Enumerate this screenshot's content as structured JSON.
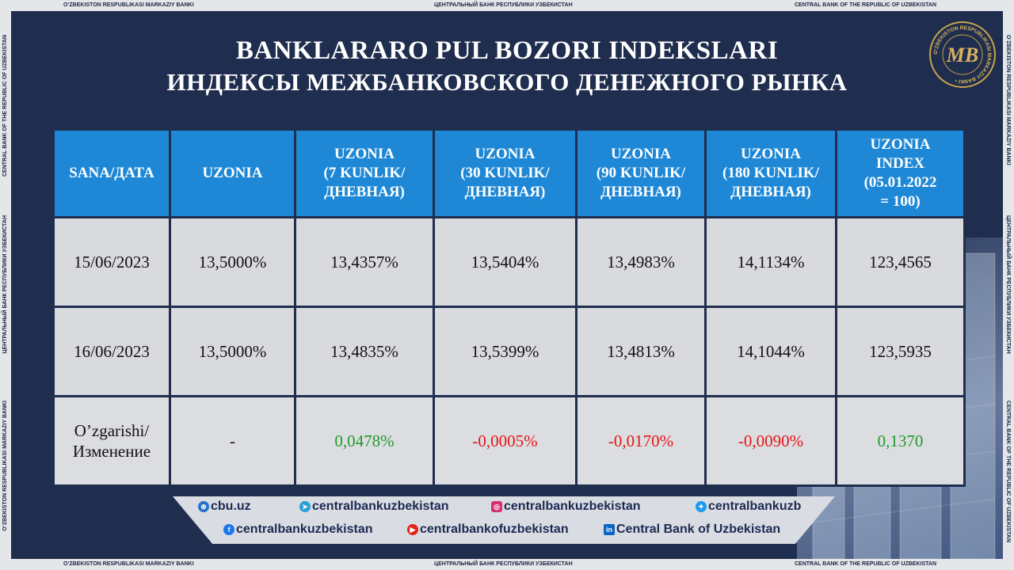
{
  "frame": {
    "top": [
      "O‘ZBEKISTON RESPUBLIKASI MARKAZIY BANKI",
      "ЦЕНТРАЛЬНЫЙ БАНК РЕСПУБЛИКИ УЗБЕКИСТАН",
      "CENTRAL BANK OF THE REPUBLIC OF UZBEKISTAN"
    ],
    "bottom": [
      "O‘ZBEKISTON RESPUBLIKASI MARKAZIY BANKI",
      "ЦЕНТРАЛЬНЫЙ БАНК РЕСПУБЛИКИ УЗБЕКИСТАН",
      "CENTRAL BANK OF THE REPUBLIC OF UZBEKISTAN"
    ],
    "left": [
      "CENTRAL BANK OF THE REPUBLIC OF UZBEKISTAN",
      "ЦЕНТРАЛЬНЫЙ БАНК РЕСПУБЛИКИ УЗБЕКИСТАН",
      "O‘ZBEKISTON RESPUBLIKASI MARKAZIY BANKI"
    ],
    "right": [
      "O‘ZBEKISTON RESPUBLIKASI MARKAZIY BANKI",
      "ЦЕНТРАЛЬНЫЙ БАНК РЕСПУБЛИКИ УЗБЕКИСТАН",
      "CENTRAL BANK OF THE REPUBLIC OF UZBEKISTAN"
    ]
  },
  "title_line1": "BANKLARARO PUL BOZORI INDEKSLARI",
  "title_line2": "ИНДЕКСЫ МЕЖБАНКОВСКОГО ДЕНЕЖНОГО РЫНКА",
  "logo": {
    "ring_text": "O‘ZBEKISTON RESPUBLIKASI MARKAZIY BANKI",
    "monogram": "MB"
  },
  "table": {
    "headers": [
      [
        "SANA/ДАТА"
      ],
      [
        "UZONIA"
      ],
      [
        "UZONIA",
        "(7 KUNLIK/",
        "ДНЕВНАЯ)"
      ],
      [
        "UZONIA",
        "(30 KUNLIK/",
        "ДНЕВНАЯ)"
      ],
      [
        "UZONIA",
        "(90 KUNLIK/",
        "ДНЕВНАЯ)"
      ],
      [
        "UZONIA",
        "(180 KUNLIK/",
        "ДНЕВНАЯ)"
      ],
      [
        "UZONIA",
        "INDEX",
        "(05.01.2022",
        "= 100)"
      ]
    ],
    "rows": [
      [
        "15/06/2023",
        "13,5000%",
        "13,4357%",
        "13,5404%",
        "13,4983%",
        "14,1134%",
        "123,4565"
      ],
      [
        "16/06/2023",
        "13,5000%",
        "13,4835%",
        "13,5399%",
        "13,4813%",
        "14,1044%",
        "123,5935"
      ]
    ],
    "change_row": {
      "label": [
        "O’zgarishi/",
        "Изменение"
      ],
      "values": [
        "-",
        "0,0478%",
        "-0,0005%",
        "-0,0170%",
        "-0,0090%",
        "0,1370"
      ],
      "colors": [
        "#111111",
        "#1f9a2d",
        "#e01717",
        "#e01717",
        "#e01717",
        "#1f9a2d"
      ]
    }
  },
  "social": [
    {
      "icon": "globe-icon",
      "text": "cbu.uz"
    },
    {
      "icon": "telegram-icon",
      "text": "centralbankuzbekistan"
    },
    {
      "icon": "instagram-icon",
      "text": "centralbankuzbekistan"
    },
    {
      "icon": "twitter-icon",
      "text": "centralbankuzb"
    },
    {
      "icon": "facebook-icon",
      "text": "centralbankuzbekistan"
    },
    {
      "icon": "youtube-icon",
      "text": "centralbankofuzbekistan"
    },
    {
      "icon": "linkedin-icon",
      "text": "Central Bank of Uzbekistan"
    }
  ]
}
